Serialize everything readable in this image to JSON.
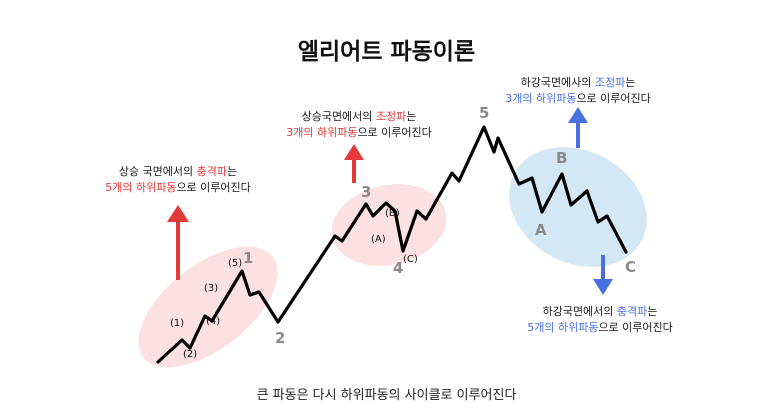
{
  "title": "엘리어트 파동이론",
  "caption": "큰 파동은 다시 하위파동의 사이클로 이루어진다",
  "notes": {
    "rise_impulse": {
      "line1_pre": "상승 국면에서의 ",
      "line1_hl": "충격파",
      "line1_post": "는",
      "line2_hl": "5개의 하위파동",
      "line2_post": "으로 이루어진다"
    },
    "rise_correction": {
      "line1_pre": "상승국면에서의 ",
      "line1_hl": "조정파",
      "line1_post": "는",
      "line2_hl": "3개의 하위파동",
      "line2_post": "으로 이루어진다"
    },
    "fall_correction": {
      "line1_pre": "하강국면에사의 ",
      "line1_hl": "조정파",
      "line1_post": "는",
      "line2_hl": "3개의 하위파동",
      "line2_post": "으로 이루어진다"
    },
    "fall_impulse": {
      "line1_pre": "하강국면에서의 ",
      "line1_hl": "충격파",
      "line1_post": "는",
      "line2_hl": "5개의 하위파동",
      "line2_post": "으로 이루어진다"
    }
  },
  "wave_labels": {
    "major": [
      "1",
      "2",
      "3",
      "4",
      "5",
      "A",
      "B",
      "C"
    ],
    "minor": [
      "(1)",
      "(2)",
      "(3)",
      "(4)",
      "(5)",
      "(A)",
      "(B)",
      "(C)"
    ]
  },
  "colors": {
    "red": "#e53a3a",
    "blue": "#4a6fe0",
    "pink_zone": "#fbe1e1",
    "blue_zone": "#d3e7f4",
    "line": "#000000",
    "label_gray": "#8a8a8a"
  }
}
